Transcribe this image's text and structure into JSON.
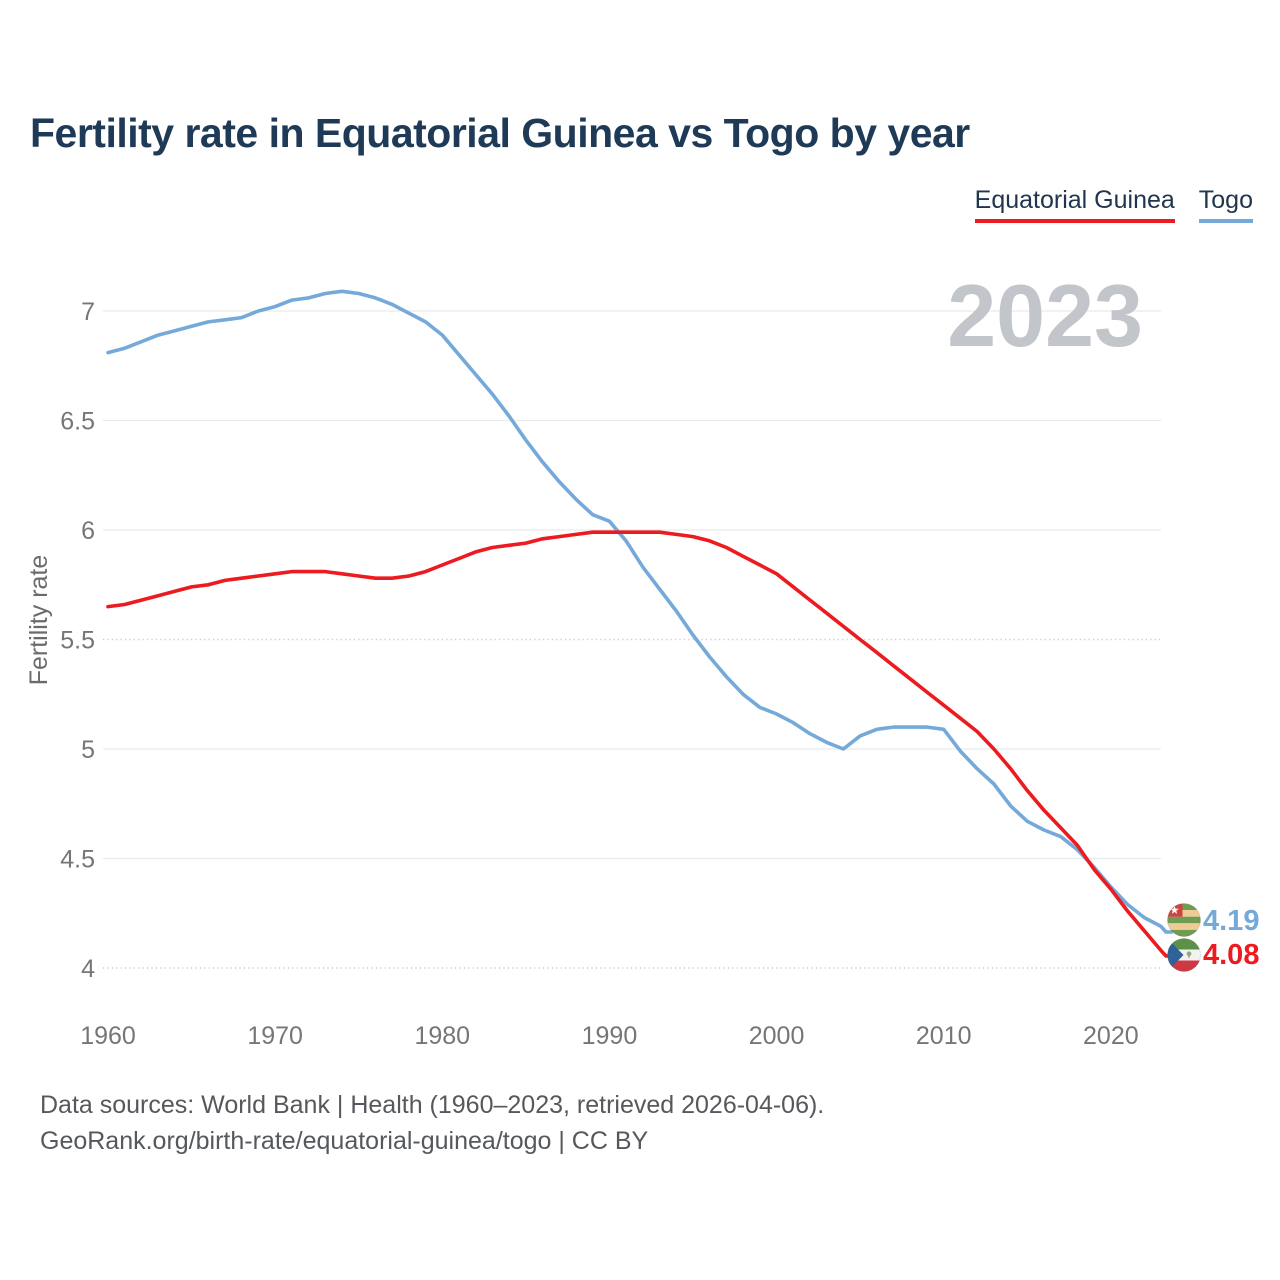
{
  "page": {
    "title": "Fertility rate in Equatorial Guinea vs Togo by year",
    "watermark_year": "2023"
  },
  "legend": {
    "items": [
      {
        "label": "Equatorial Guinea",
        "color": "#ec1b1f"
      },
      {
        "label": "Togo",
        "color": "#74a9d9"
      }
    ]
  },
  "footer": {
    "line1": "Data sources: World Bank | Health (1960–2023, retrieved 2026-04-06).",
    "line2": "GeoRank.org/birth-rate/equatorial-guinea/togo | CC BY"
  },
  "chart_data": {
    "type": "line",
    "title": "Fertility rate in Equatorial Guinea vs Togo by year",
    "xlabel": "",
    "ylabel": "Fertility rate",
    "x_start": 1960,
    "x_end": 2023,
    "x_interval_years": 1,
    "xticks": [
      1960,
      1970,
      1980,
      1990,
      2000,
      2010,
      2020
    ],
    "yticks": [
      4,
      4.5,
      5,
      5.5,
      6,
      6.5,
      7
    ],
    "dotted_yticks": [
      5.5,
      4
    ],
    "ylim": [
      4,
      7.1
    ],
    "grid": "horizontal",
    "legend_position": "top-right",
    "series": [
      {
        "name": "Togo",
        "color": "#74a9d9",
        "end_label": "4.19",
        "end_value": 4.19,
        "values": [
          6.81,
          6.83,
          6.86,
          6.89,
          6.91,
          6.93,
          6.95,
          6.96,
          6.97,
          7.0,
          7.02,
          7.05,
          7.06,
          7.08,
          7.09,
          7.08,
          7.06,
          7.03,
          6.99,
          6.95,
          6.89,
          6.8,
          6.71,
          6.62,
          6.52,
          6.41,
          6.31,
          6.22,
          6.14,
          6.07,
          6.04,
          5.95,
          5.83,
          5.73,
          5.63,
          5.52,
          5.42,
          5.33,
          5.25,
          5.19,
          5.16,
          5.12,
          5.07,
          5.03,
          5.0,
          5.06,
          5.09,
          5.1,
          5.1,
          5.1,
          5.09,
          4.99,
          4.91,
          4.84,
          4.74,
          4.67,
          4.63,
          4.6,
          4.54,
          4.46,
          4.37,
          4.29,
          4.23,
          4.19
        ]
      },
      {
        "name": "Equatorial Guinea",
        "color": "#ec1b1f",
        "end_label": "4.08",
        "end_value": 4.08,
        "values": [
          5.65,
          5.66,
          5.68,
          5.7,
          5.72,
          5.74,
          5.75,
          5.77,
          5.78,
          5.79,
          5.8,
          5.81,
          5.81,
          5.81,
          5.8,
          5.79,
          5.78,
          5.78,
          5.79,
          5.81,
          5.84,
          5.87,
          5.9,
          5.92,
          5.93,
          5.94,
          5.96,
          5.97,
          5.98,
          5.99,
          5.99,
          5.99,
          5.99,
          5.99,
          5.98,
          5.97,
          5.95,
          5.92,
          5.88,
          5.84,
          5.8,
          5.74,
          5.68,
          5.62,
          5.56,
          5.5,
          5.44,
          5.38,
          5.32,
          5.26,
          5.2,
          5.14,
          5.08,
          5.0,
          4.91,
          4.81,
          4.72,
          4.64,
          4.56,
          4.45,
          4.36,
          4.26,
          4.17,
          4.08
        ]
      }
    ]
  }
}
